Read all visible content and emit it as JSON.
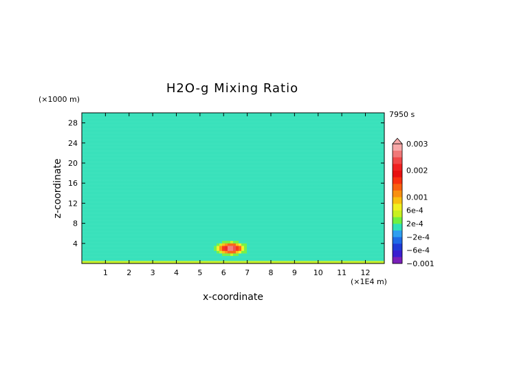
{
  "chart_data": {
    "type": "heatmap",
    "title": "H2O-g Mixing Ratio",
    "time_label": "7950 s",
    "xlabel": "x-coordinate",
    "ylabel": "z-coordinate",
    "x_units": "(×1E4 m)",
    "y_units": "(×1000 m)",
    "xlim": [
      0,
      12.8
    ],
    "ylim": [
      0,
      30
    ],
    "x_ticks": [
      {
        "value": 1,
        "label": "1"
      },
      {
        "value": 2,
        "label": "2"
      },
      {
        "value": 3,
        "label": "3"
      },
      {
        "value": 4,
        "label": "4"
      },
      {
        "value": 5,
        "label": "5"
      },
      {
        "value": 6,
        "label": "6"
      },
      {
        "value": 7,
        "label": "7"
      },
      {
        "value": 8,
        "label": "8"
      },
      {
        "value": 9,
        "label": "9"
      },
      {
        "value": 10,
        "label": "10"
      },
      {
        "value": 11,
        "label": "11"
      },
      {
        "value": 12,
        "label": "12"
      }
    ],
    "y_ticks": [
      {
        "value": 4,
        "label": "4"
      },
      {
        "value": 8,
        "label": "8"
      },
      {
        "value": 12,
        "label": "12"
      },
      {
        "value": 16,
        "label": "16"
      },
      {
        "value": 20,
        "label": "20"
      },
      {
        "value": 24,
        "label": "24"
      },
      {
        "value": 28,
        "label": "28"
      }
    ],
    "colorbar": {
      "levels": [
        {
          "value": -0.001,
          "color": "#7a1fb8"
        },
        {
          "value": -0.0008,
          "color": "#3a1fd0"
        },
        {
          "value": -0.0006,
          "color": "#1f3ad6"
        },
        {
          "value": -0.0004,
          "color": "#1f6ae6"
        },
        {
          "value": -0.0002,
          "color": "#2f9ef0"
        },
        {
          "value": 0.0,
          "color": "#30e0b8"
        },
        {
          "value": 0.0002,
          "color": "#70f040"
        },
        {
          "value": 0.0004,
          "color": "#c8f020"
        },
        {
          "value": 0.0006,
          "color": "#f0f020"
        },
        {
          "value": 0.0008,
          "color": "#f8c010"
        },
        {
          "value": 0.001,
          "color": "#f89010"
        },
        {
          "value": 0.0012,
          "color": "#f86010"
        },
        {
          "value": 0.0015,
          "color": "#f83010"
        },
        {
          "value": 0.0018,
          "color": "#e81010"
        },
        {
          "value": 0.002,
          "color": "#f02020"
        },
        {
          "value": 0.0022,
          "color": "#f04848"
        },
        {
          "value": 0.0025,
          "color": "#f07878"
        },
        {
          "value": 0.0028,
          "color": "#f8a8a8"
        }
      ],
      "labels": [
        {
          "value": 0.003,
          "label": "0.003"
        },
        {
          "value": 0.002,
          "label": "0.002"
        },
        {
          "value": 0.001,
          "label": "0.001"
        },
        {
          "value": 0.0006,
          "label": "6e-4"
        },
        {
          "value": 0.0002,
          "label": "2e-4"
        },
        {
          "value": -0.0002,
          "label": "−2e-4"
        },
        {
          "value": -0.0006,
          "label": "−6e-4"
        },
        {
          "value": -0.001,
          "label": "−0.001"
        }
      ],
      "max": 0.003,
      "min": -0.001
    },
    "field": {
      "background_value": -0.0002,
      "band_value": 0.0001,
      "source": {
        "x": 6.3,
        "z": 3.0,
        "peak": 0.0028
      }
    }
  }
}
